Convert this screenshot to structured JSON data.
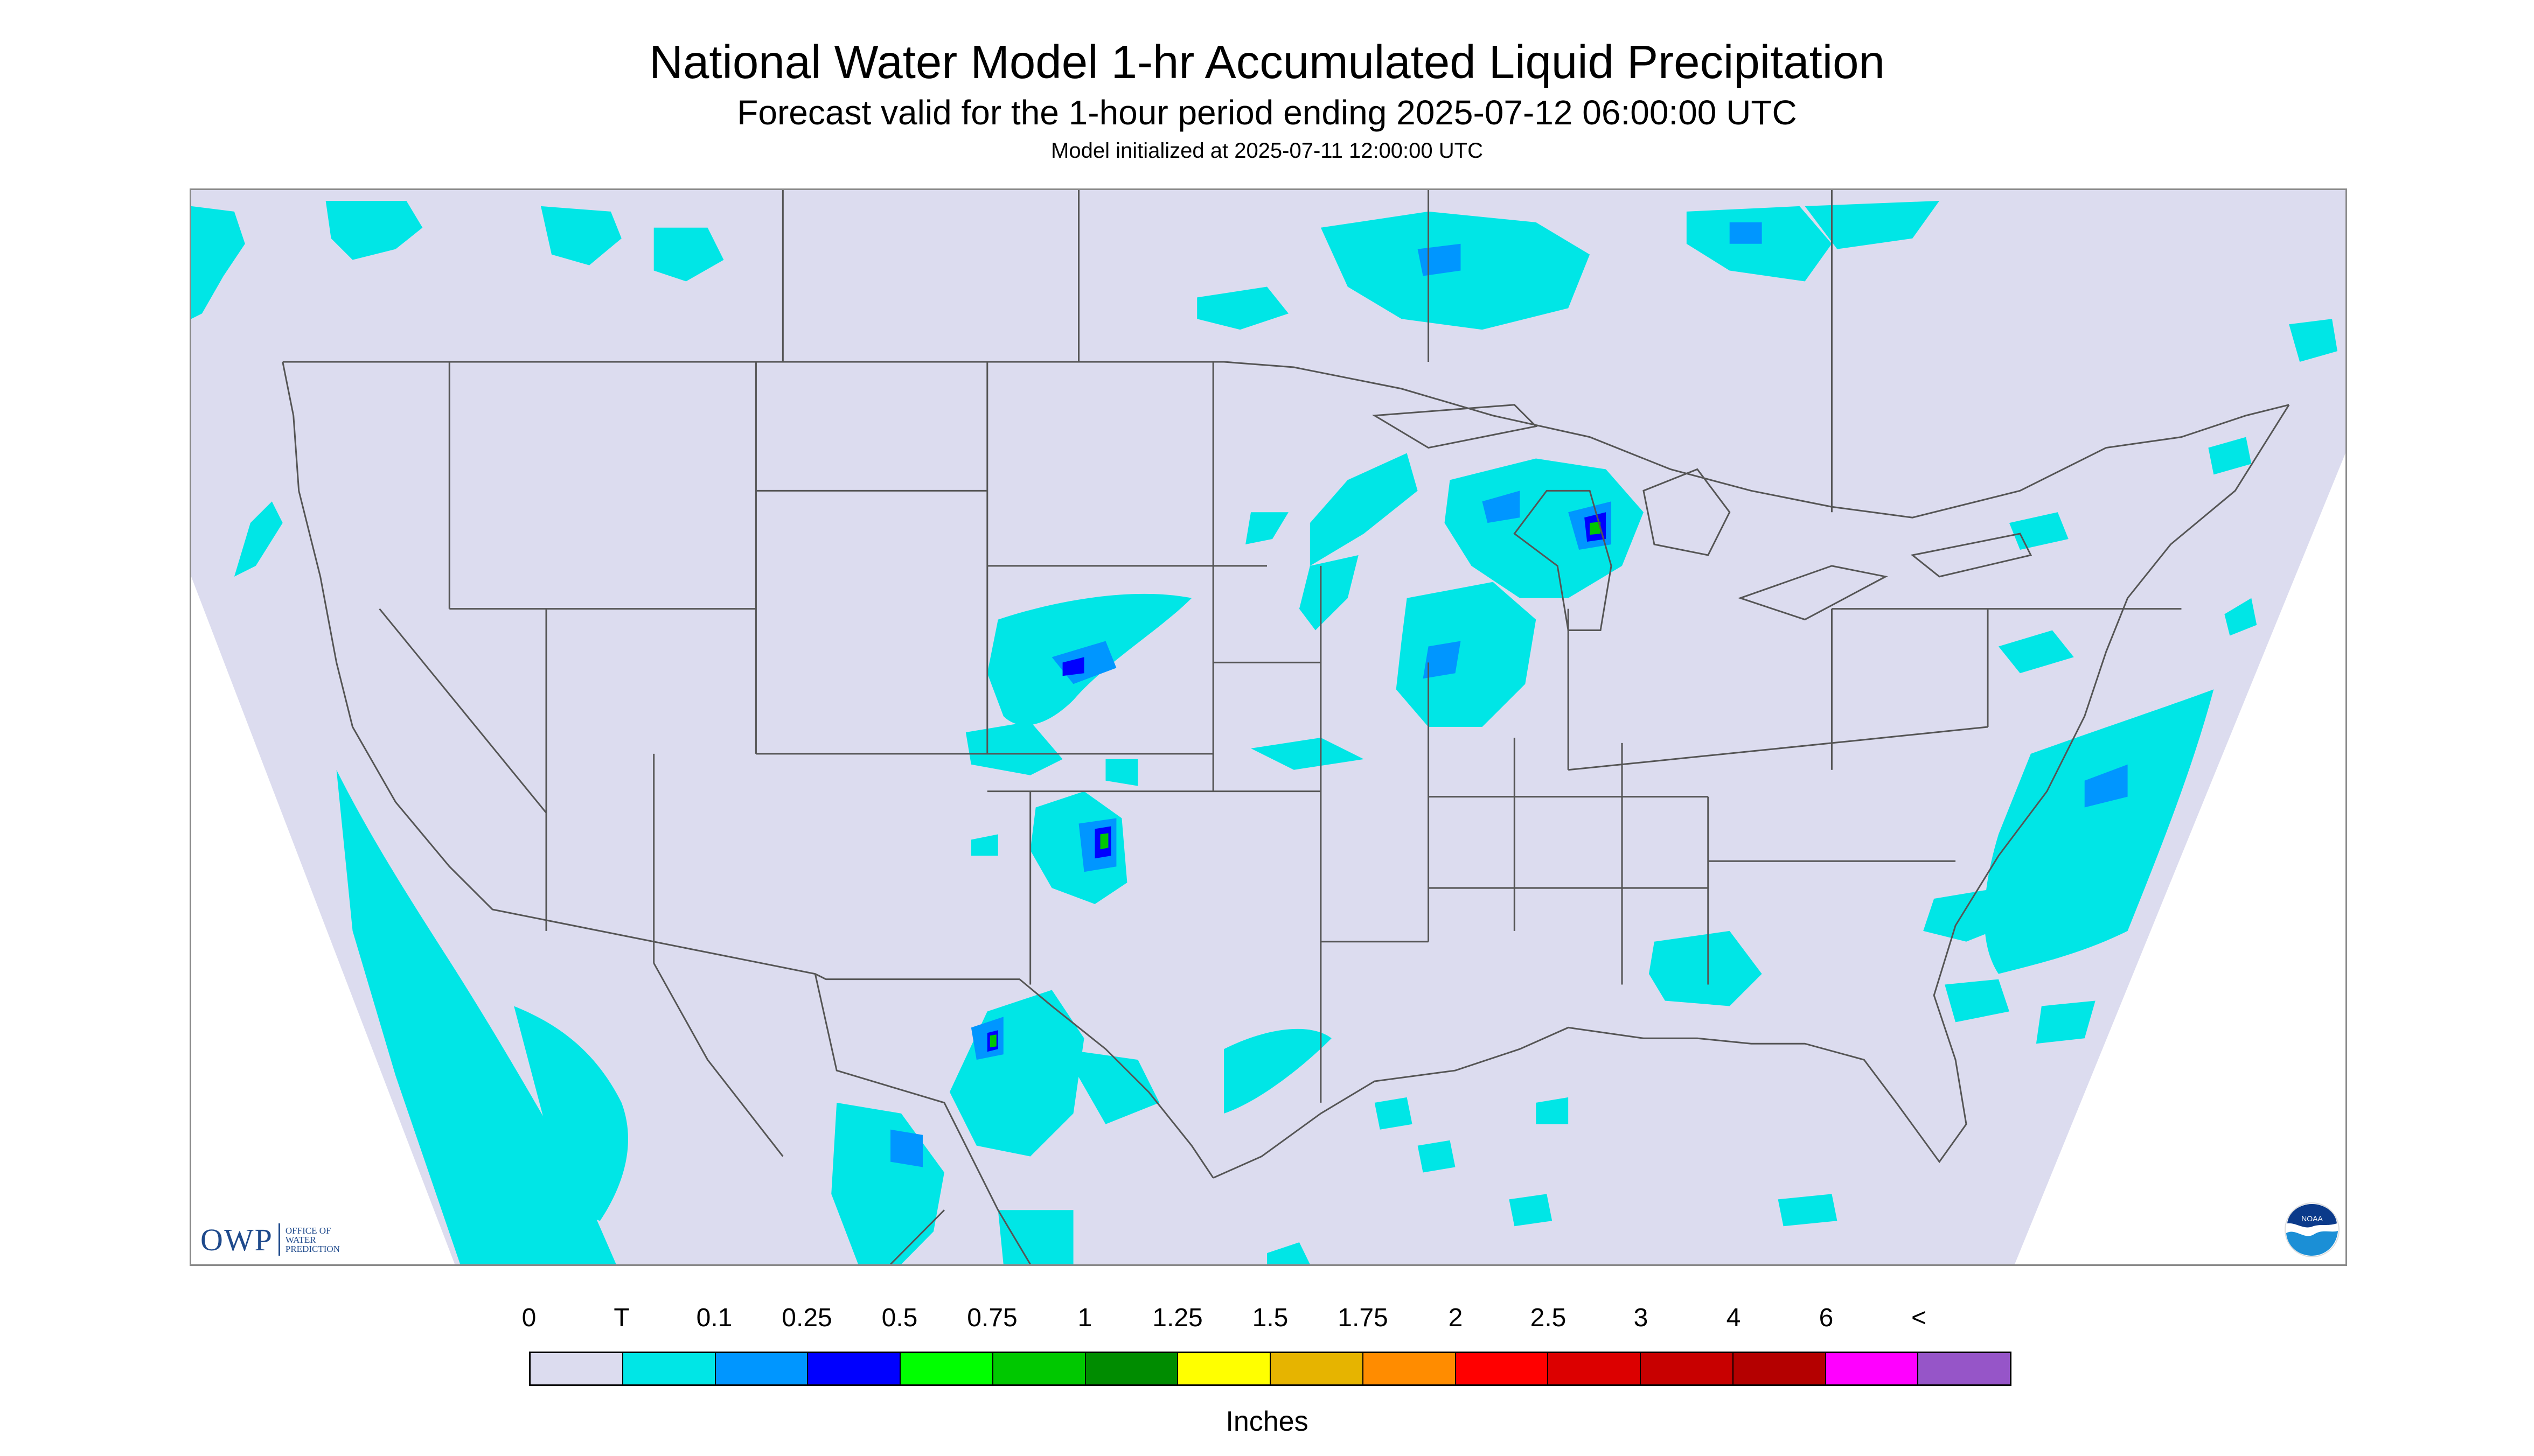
{
  "title": "National Water Model 1-hr Accumulated Liquid Precipitation",
  "subtitle": "Forecast valid for the 1-hour period ending 2025-07-12 06:00:00 UTC",
  "model_init": "Model initialized at 2025-07-11 12:00:00 UTC",
  "units_label": "Inches",
  "logos": {
    "owp": {
      "word": "OWP",
      "sub_lines": [
        "OFFICE OF",
        "WATER",
        "PREDICTION"
      ]
    },
    "noaa": {
      "word": "NOAA"
    }
  },
  "colors": {
    "map_background": "#dcdcef",
    "outside_projection": "#ffffff",
    "boundaries": "#555555",
    "trace": "#00e6e6"
  },
  "legend": {
    "labels": [
      "0",
      "T",
      "0.1",
      "0.25",
      "0.5",
      "0.75",
      "1",
      "1.25",
      "1.5",
      "1.75",
      "2",
      "2.5",
      "3",
      "4",
      "6",
      "<"
    ],
    "colors": [
      "#dcdcef",
      "#00e6e6",
      "#0096ff",
      "#0000ff",
      "#00ff00",
      "#00c800",
      "#008c00",
      "#ffff00",
      "#e6b400",
      "#ff8c00",
      "#ff0000",
      "#dc0000",
      "#c80000",
      "#b40000",
      "#ff00ff",
      "#9655c8"
    ]
  },
  "precip_areas": [
    {
      "region": "Pacific Ocean off California / Baja",
      "category": "T"
    },
    {
      "region": "Pacific Northwest coast and British Columbia",
      "category": "T"
    },
    {
      "region": "Southern Alberta / Saskatchewan",
      "category": "T"
    },
    {
      "region": "Northwest Ontario / Manitoba",
      "category": "0.25"
    },
    {
      "region": "Kansas / Colorado / Nebraska border",
      "category": "0.5"
    },
    {
      "region": "Oklahoma / Texas Panhandle",
      "category": "0.75"
    },
    {
      "region": "Wisconsin / Michigan / Lake Michigan",
      "category": "0.75"
    },
    {
      "region": "Illinois / Iowa",
      "category": "0.25"
    },
    {
      "region": "Southwest Texas / Chihuahua",
      "category": "0.75"
    },
    {
      "region": "Northern Mexico",
      "category": "0.25"
    },
    {
      "region": "Western Atlantic off the East Coast",
      "category": "0.25"
    },
    {
      "region": "Georgia / South Carolina",
      "category": "0.25"
    },
    {
      "region": "Gulf of Mexico",
      "category": "T"
    },
    {
      "region": "Quebec / Maine",
      "category": "T"
    }
  ]
}
